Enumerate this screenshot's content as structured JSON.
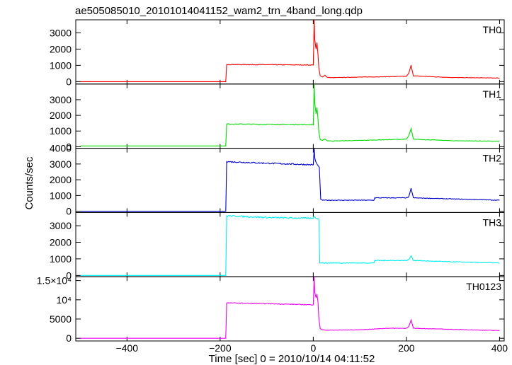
{
  "chart_data": {
    "type": "line",
    "title": "ae505085010_20101014041152_wam2_trn_4band_long.qdp",
    "xlabel": "Time [sec] 0 = 2010/10/14 04:11:52",
    "ylabel": "Counts/sec",
    "xlim": [
      -510,
      410
    ],
    "x_ticks": [
      {
        "value": -400,
        "label": "−400"
      },
      {
        "value": -200,
        "label": "−200"
      },
      {
        "value": 0,
        "label": "0"
      },
      {
        "value": 200,
        "label": "200"
      },
      {
        "value": 400,
        "label": "400"
      }
    ],
    "grid": false,
    "panels": [
      {
        "name": "TH0",
        "color": "#ff0000",
        "ylim": [
          -150,
          3800
        ],
        "y_ticks": [
          {
            "value": 0,
            "label": "0"
          },
          {
            "value": 1000,
            "label": "1000"
          },
          {
            "value": 2000,
            "label": "2000"
          },
          {
            "value": 3000,
            "label": "3000"
          }
        ],
        "base": 0,
        "pre": 1050,
        "post": 250,
        "step": 0,
        "x": [
          -500,
          -188,
          -186,
          -100,
          0,
          2,
          3,
          6,
          8,
          10,
          12,
          15,
          20,
          25,
          30,
          40,
          100,
          160,
          200,
          205,
          210,
          215,
          300,
          400
        ],
        "y": [
          0,
          0,
          1050,
          1040,
          1020,
          3800,
          2600,
          2000,
          2400,
          1700,
          800,
          350,
          280,
          400,
          260,
          240,
          280,
          300,
          330,
          500,
          1000,
          350,
          250,
          220
        ],
        "noise_pre": 40,
        "noise_post": 25
      },
      {
        "name": "TH1",
        "color": "#00dd00",
        "ylim": [
          -100,
          4000
        ],
        "y_ticks": [
          {
            "value": 0,
            "label": "0"
          },
          {
            "value": 1000,
            "label": "1000"
          },
          {
            "value": 2000,
            "label": "2000"
          },
          {
            "value": 3000,
            "label": "3000"
          }
        ],
        "base": 50,
        "pre": 1450,
        "post": 370,
        "step": 0,
        "x": [
          -500,
          -188,
          -186,
          -100,
          0,
          2,
          3,
          6,
          8,
          10,
          12,
          15,
          20,
          25,
          30,
          40,
          100,
          160,
          200,
          205,
          210,
          215,
          300,
          400
        ],
        "y": [
          50,
          50,
          1450,
          1430,
          1400,
          4000,
          2800,
          2100,
          2500,
          1800,
          900,
          450,
          400,
          500,
          380,
          360,
          400,
          450,
          480,
          700,
          1150,
          480,
          380,
          350
        ],
        "noise_pre": 45,
        "noise_post": 30
      },
      {
        "name": "TH2",
        "color": "#0000cc",
        "ylim": [
          -80,
          4000
        ],
        "y_ticks": [
          {
            "value": 0,
            "label": "0"
          },
          {
            "value": 1000,
            "label": "1000"
          },
          {
            "value": 2000,
            "label": "2000"
          },
          {
            "value": 3000,
            "label": "3000"
          },
          {
            "value": 4000,
            "label": "4000"
          }
        ],
        "base": 0,
        "pre": 3150,
        "post": 700,
        "step": 850,
        "x": [
          -500,
          -188,
          -186,
          -100,
          0,
          2,
          3,
          6,
          10,
          13,
          16,
          20,
          130,
          132,
          200,
          205,
          210,
          215,
          300,
          400
        ],
        "y": [
          0,
          0,
          3150,
          3050,
          2950,
          4000,
          3400,
          3100,
          2900,
          2800,
          750,
          700,
          700,
          850,
          850,
          900,
          1450,
          850,
          780,
          700
        ],
        "noise_pre": 80,
        "noise_post": 40
      },
      {
        "name": "TH3",
        "color": "#00eeee",
        "ylim": [
          -80,
          3800
        ],
        "y_ticks": [
          {
            "value": 0,
            "label": "0"
          },
          {
            "value": 1000,
            "label": "1000"
          },
          {
            "value": 2000,
            "label": "2000"
          },
          {
            "value": 3000,
            "label": "3000"
          }
        ],
        "base": 0,
        "pre": 3600,
        "post": 750,
        "step": 900,
        "x": [
          -500,
          -188,
          -186,
          -100,
          0,
          2,
          6,
          12,
          14,
          130,
          132,
          200,
          205,
          210,
          215,
          300,
          400
        ],
        "y": [
          0,
          0,
          3600,
          3500,
          3450,
          3550,
          3450,
          3400,
          750,
          750,
          900,
          900,
          950,
          1200,
          900,
          820,
          750
        ],
        "noise_pre": 80,
        "noise_post": 40
      },
      {
        "name": "TH0123",
        "color": "#ee00ee",
        "ylim": [
          -700,
          16000
        ],
        "y_ticks": [
          {
            "value": 0,
            "label": "0"
          },
          {
            "value": 5000,
            "label": "5000"
          },
          {
            "value": 10000,
            "label": "10⁴"
          },
          {
            "value": 15000,
            "label": "1.5×10⁴"
          }
        ],
        "base": 0,
        "pre": 9200,
        "post": 2200,
        "step": 0,
        "x": [
          -500,
          -188,
          -186,
          -100,
          0,
          2,
          3,
          6,
          8,
          10,
          12,
          15,
          20,
          30,
          100,
          130,
          160,
          200,
          205,
          210,
          215,
          300,
          400
        ],
        "y": [
          0,
          0,
          9200,
          9000,
          8700,
          16000,
          12000,
          10500,
          11500,
          9500,
          5000,
          2500,
          2200,
          2100,
          2200,
          2400,
          2600,
          2600,
          3000,
          4700,
          2600,
          2300,
          2000
        ],
        "noise_pre": 180,
        "noise_post": 120
      }
    ]
  }
}
